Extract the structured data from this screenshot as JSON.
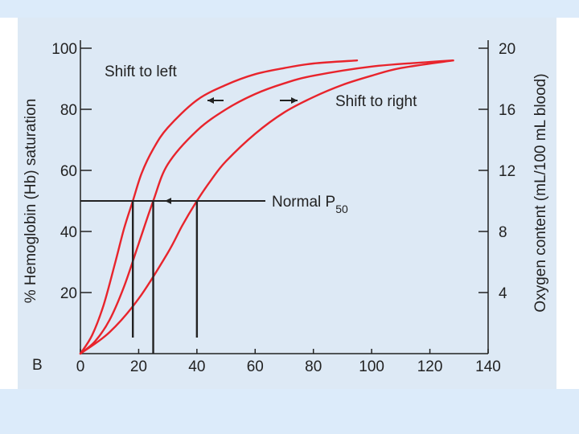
{
  "colors": {
    "slide_bg": "#dcebfa",
    "panel_bg": "#dde9f5",
    "curve": "#e8242c",
    "axis": "#222222",
    "white_bar": "#ffffff"
  },
  "chart_data": {
    "type": "line",
    "panel_letter": "B",
    "xlabel": "",
    "ylabel": "% Hemoglobin (Hb) saturation",
    "y2label": "Oxygen content (mL/100 mL blood)",
    "xlim": [
      0,
      140
    ],
    "ylim": [
      0,
      100
    ],
    "y2lim": [
      0,
      20
    ],
    "xticks": [
      0,
      20,
      40,
      60,
      80,
      100,
      120,
      140
    ],
    "yticks": [
      20,
      40,
      60,
      80,
      100
    ],
    "y2ticks": [
      4,
      8,
      12,
      16,
      20
    ],
    "series": [
      {
        "name": "Shift to left",
        "p50": 18,
        "x": [
          0,
          4,
          8,
          12,
          15,
          18,
          21,
          25,
          30,
          40,
          50,
          60,
          70,
          80,
          95
        ],
        "y": [
          0,
          6,
          16,
          30,
          41,
          50,
          59,
          67,
          74,
          83,
          88,
          91.5,
          93.5,
          95,
          96
        ]
      },
      {
        "name": "Normal",
        "p50": 25,
        "x": [
          0,
          5,
          10,
          15,
          20,
          25,
          30,
          40,
          50,
          60,
          70,
          80,
          100,
          120,
          128
        ],
        "y": [
          0,
          4,
          11,
          22,
          36,
          50,
          62,
          73,
          80,
          85,
          88.5,
          91,
          94,
          95.5,
          96
        ]
      },
      {
        "name": "Shift to right",
        "p50": 40,
        "x": [
          0,
          10,
          20,
          30,
          35,
          40,
          45,
          50,
          60,
          70,
          80,
          90,
          100,
          110,
          128
        ],
        "y": [
          0,
          7,
          18,
          33,
          42,
          50,
          57,
          63,
          72,
          79,
          84,
          88,
          91,
          93.5,
          96
        ]
      }
    ],
    "annotations": {
      "shift_left": "Shift to left",
      "shift_right": "Shift to right",
      "normal_p50": "Normal P",
      "normal_p50_sub": "50"
    }
  }
}
